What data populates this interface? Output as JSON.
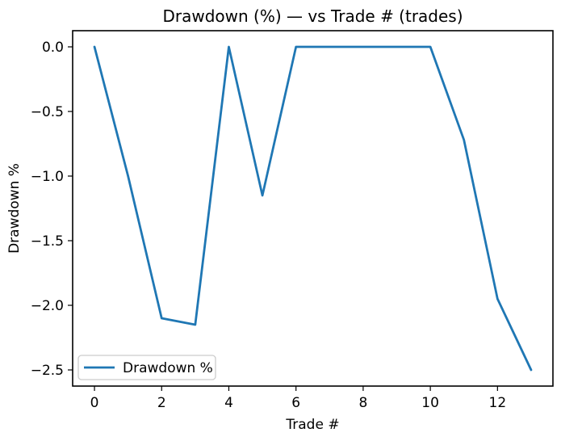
{
  "figure": {
    "background": "#ffffff",
    "text_color": "#000000",
    "spine_color": "#000000",
    "legend_border_color": "#cccccc"
  },
  "chart_data": {
    "type": "line",
    "title": "Drawdown (%) — vs Trade # (trades)",
    "xlabel": "Trade #",
    "ylabel": "Drawdown %",
    "x": [
      0,
      1,
      2,
      3,
      4,
      5,
      6,
      7,
      8,
      9,
      10,
      11,
      12,
      13
    ],
    "series": [
      {
        "name": "Drawdown %",
        "color": "#1f77b4",
        "values": [
          0.0,
          -1.0,
          -2.1,
          -2.15,
          0.0,
          -1.15,
          0.0,
          0.0,
          0.0,
          0.0,
          0.0,
          -0.72,
          -1.95,
          -2.5
        ]
      }
    ],
    "xlim": [
      -0.65,
      13.65
    ],
    "ylim": [
      -2.625,
      0.125
    ],
    "xticks": [
      0,
      2,
      4,
      6,
      8,
      10,
      12
    ],
    "xtick_labels": [
      "0",
      "2",
      "4",
      "6",
      "8",
      "10",
      "12"
    ],
    "yticks": [
      0.0,
      -0.5,
      -1.0,
      -1.5,
      -2.0,
      -2.5
    ],
    "ytick_labels": [
      "0.0",
      "−0.5",
      "−1.0",
      "−1.5",
      "−2.0",
      "−2.5"
    ],
    "grid": false,
    "legend": {
      "position": "lower left",
      "entries": [
        "Drawdown %"
      ]
    }
  }
}
